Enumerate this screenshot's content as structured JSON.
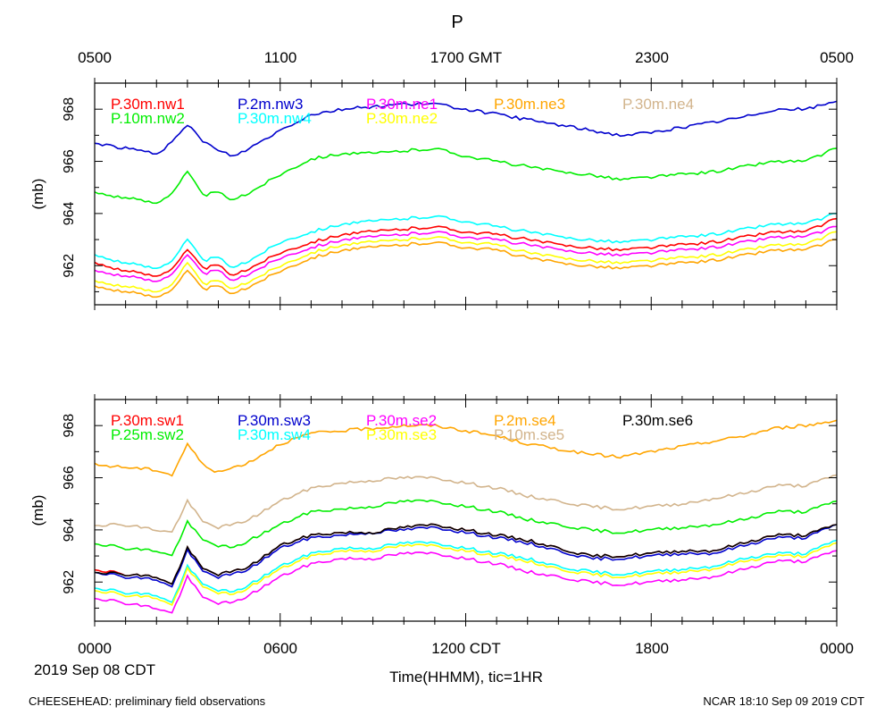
{
  "page": {
    "title": "P",
    "top_axis_ticks": [
      "0500",
      "1100",
      "1700 GMT",
      "2300",
      "0500"
    ],
    "bottom_axis_ticks": [
      "0000",
      "0600",
      "1200 CDT",
      "1800",
      "0000"
    ],
    "date_label": "2019 Sep 08 CDT",
    "xlabel": "Time(HHMM), tic=1HR",
    "footer_left": "CHEESEHEAD: preliminary field observations",
    "footer_right": "NCAR 18:10 Sep 09 2019 CDT"
  },
  "colors": {
    "red": "#ff0000",
    "blue": "#0000cd",
    "magenta": "#ff00ff",
    "orange": "#ffa500",
    "tan": "#d2b48c",
    "green": "#00ee00",
    "cyan": "#00ffff",
    "yellow": "#ffff00",
    "black": "#000000"
  },
  "chart_data": [
    {
      "type": "line",
      "ylabel": "(mb)",
      "ylim": [
        960.5,
        969.0
      ],
      "xlim_hours": [
        0,
        24
      ],
      "yticks": [
        "962",
        "964",
        "966",
        "968"
      ],
      "ytick_values": [
        962,
        964,
        966,
        968
      ],
      "series": [
        {
          "name": "P.30m.nw1",
          "color": "#ff0000",
          "x": [
            0,
            1,
            2,
            2.5,
            3,
            3.5,
            4,
            4.5,
            5,
            6,
            7,
            8,
            9,
            10,
            11,
            12,
            13,
            14,
            15,
            16,
            17,
            18,
            19,
            20,
            21,
            22,
            23,
            24
          ],
          "values": [
            962.1,
            961.8,
            961.6,
            961.9,
            962.6,
            961.9,
            962.0,
            961.6,
            961.9,
            962.5,
            962.9,
            963.2,
            963.3,
            963.4,
            963.5,
            963.3,
            963.2,
            963.0,
            962.8,
            962.7,
            962.6,
            962.7,
            962.8,
            962.9,
            963.1,
            963.3,
            963.3,
            963.8
          ]
        },
        {
          "name": "P.10m.nw2",
          "color": "#00ee00",
          "x": [
            0,
            1,
            2,
            2.5,
            3,
            3.5,
            4,
            4.5,
            5,
            6,
            7,
            8,
            9,
            10,
            11,
            12,
            13,
            14,
            15,
            16,
            17,
            18,
            19,
            20,
            21,
            22,
            23,
            24
          ],
          "values": [
            964.8,
            964.6,
            964.4,
            964.8,
            965.6,
            964.7,
            964.8,
            964.5,
            964.8,
            965.5,
            966.1,
            966.3,
            966.3,
            966.4,
            966.5,
            966.2,
            966.0,
            965.8,
            965.6,
            965.5,
            965.3,
            965.4,
            965.5,
            965.6,
            965.8,
            966.0,
            966.0,
            966.5
          ]
        },
        {
          "name": "P.2m.nw3",
          "color": "#0000cd",
          "x": [
            0,
            1,
            2,
            2.5,
            3,
            3.5,
            4,
            4.5,
            5,
            6,
            7,
            8,
            9,
            10,
            11,
            12,
            13,
            14,
            15,
            16,
            17,
            18,
            19,
            20,
            21,
            22,
            23,
            24
          ],
          "values": [
            966.7,
            966.5,
            966.3,
            966.7,
            967.4,
            966.8,
            966.4,
            966.2,
            966.5,
            967.2,
            967.8,
            968.0,
            968.1,
            968.2,
            968.2,
            968.0,
            967.8,
            967.6,
            967.4,
            967.2,
            967.0,
            967.1,
            967.3,
            967.5,
            967.7,
            968.0,
            968.0,
            968.3
          ]
        },
        {
          "name": "P.30m.nw4",
          "color": "#00ffff",
          "x": [
            0,
            1,
            2,
            2.5,
            3,
            3.5,
            4,
            4.5,
            5,
            6,
            7,
            8,
            9,
            10,
            11,
            12,
            13,
            14,
            15,
            16,
            17,
            18,
            19,
            20,
            21,
            22,
            23,
            24
          ],
          "values": [
            962.4,
            962.1,
            961.9,
            962.2,
            963.0,
            962.2,
            962.3,
            961.9,
            962.2,
            962.9,
            963.3,
            963.6,
            963.7,
            963.8,
            963.9,
            963.7,
            963.5,
            963.3,
            963.1,
            963.0,
            962.9,
            963.0,
            963.1,
            963.2,
            963.4,
            963.6,
            963.6,
            964.0
          ]
        },
        {
          "name": "P.30m.ne1",
          "color": "#ff00ff",
          "x": [
            0,
            1,
            2,
            2.5,
            3,
            3.5,
            4,
            4.5,
            5,
            6,
            7,
            8,
            9,
            10,
            11,
            12,
            13,
            14,
            15,
            16,
            17,
            18,
            19,
            20,
            21,
            22,
            23,
            24
          ],
          "values": [
            961.8,
            961.6,
            961.4,
            961.7,
            962.4,
            961.7,
            961.8,
            961.4,
            961.7,
            962.3,
            962.7,
            963.0,
            963.1,
            963.2,
            963.3,
            963.1,
            963.0,
            962.8,
            962.6,
            962.5,
            962.4,
            962.5,
            962.6,
            962.7,
            962.9,
            963.1,
            963.1,
            963.5
          ]
        },
        {
          "name": "P.30m.ne2",
          "color": "#ffff00",
          "x": [
            0,
            1,
            2,
            2.5,
            3,
            3.5,
            4,
            4.5,
            5,
            6,
            7,
            8,
            9,
            10,
            11,
            12,
            13,
            14,
            15,
            16,
            17,
            18,
            19,
            20,
            21,
            22,
            23,
            24
          ],
          "values": [
            961.4,
            961.2,
            961.0,
            961.3,
            962.1,
            961.3,
            961.4,
            961.1,
            961.4,
            962.0,
            962.5,
            962.8,
            962.9,
            963.0,
            963.1,
            962.9,
            962.8,
            962.5,
            962.3,
            962.2,
            962.1,
            962.2,
            962.3,
            962.4,
            962.6,
            962.8,
            962.8,
            963.3
          ]
        },
        {
          "name": "P.30m.ne3",
          "color": "#ffa500",
          "x": [
            0,
            1,
            2,
            2.5,
            3,
            3.5,
            4,
            4.5,
            5,
            6,
            7,
            8,
            9,
            10,
            11,
            12,
            13,
            14,
            15,
            16,
            17,
            18,
            19,
            20,
            21,
            22,
            23,
            24
          ],
          "values": [
            961.2,
            961.0,
            960.8,
            961.1,
            961.8,
            961.1,
            961.2,
            960.9,
            961.2,
            961.8,
            962.3,
            962.6,
            962.7,
            962.8,
            962.9,
            962.7,
            962.6,
            962.3,
            962.1,
            962.0,
            961.9,
            962.0,
            962.1,
            962.2,
            962.4,
            962.6,
            962.6,
            963.0
          ]
        },
        {
          "name": "P.30m.ne4",
          "color": "#d2b48c",
          "x": [],
          "values": []
        }
      ]
    },
    {
      "type": "line",
      "ylabel": "(mb)",
      "ylim": [
        960.5,
        969.0
      ],
      "xlim_hours": [
        0,
        24
      ],
      "yticks": [
        "962",
        "964",
        "966",
        "968"
      ],
      "ytick_values": [
        962,
        964,
        966,
        968
      ],
      "series": [
        {
          "name": "P.30m.sw1",
          "color": "#ff0000",
          "x": [
            0,
            1,
            2,
            2.5,
            3,
            3.5,
            4,
            4.5,
            5,
            6,
            7,
            8,
            9,
            10,
            11,
            12,
            13,
            14,
            15,
            16,
            17,
            18,
            19,
            20,
            21,
            22,
            23,
            24
          ],
          "values": [
            962.5,
            962.3,
            962.2,
            961.9,
            963.3,
            962.5,
            962.3,
            962.4,
            962.6,
            963.4,
            963.8,
            963.9,
            963.9,
            964.1,
            964.2,
            964.0,
            963.8,
            963.6,
            963.3,
            963.0,
            963.0,
            963.1,
            963.2,
            963.2,
            963.5,
            963.8,
            963.8,
            964.2
          ]
        },
        {
          "name": "P.25m.sw2",
          "color": "#00ee00",
          "x": [
            0,
            1,
            2,
            2.5,
            3,
            3.5,
            4,
            4.5,
            5,
            6,
            7,
            8,
            9,
            10,
            11,
            12,
            13,
            14,
            15,
            16,
            17,
            18,
            19,
            20,
            21,
            22,
            23,
            24
          ],
          "values": [
            963.5,
            963.3,
            963.2,
            963.0,
            964.3,
            963.6,
            963.4,
            963.3,
            963.6,
            964.2,
            964.7,
            964.8,
            964.9,
            965.1,
            965.1,
            964.9,
            964.7,
            964.4,
            964.2,
            964.0,
            963.9,
            964.0,
            964.1,
            964.2,
            964.4,
            964.7,
            964.7,
            965.1
          ]
        },
        {
          "name": "P.30m.sw3",
          "color": "#0000cd",
          "x": [
            0,
            1,
            2,
            2.5,
            3,
            3.5,
            4,
            4.5,
            5,
            6,
            7,
            8,
            9,
            10,
            11,
            12,
            13,
            14,
            15,
            16,
            17,
            18,
            19,
            20,
            21,
            22,
            23,
            24
          ],
          "values": [
            962.4,
            962.2,
            962.1,
            961.8,
            963.2,
            962.4,
            962.2,
            962.3,
            962.5,
            963.3,
            963.7,
            963.8,
            963.9,
            964.0,
            964.1,
            963.9,
            963.7,
            963.5,
            963.2,
            962.9,
            962.9,
            963.0,
            963.1,
            963.1,
            963.4,
            963.7,
            963.7,
            964.2
          ]
        },
        {
          "name": "P.30m.sw4",
          "color": "#00ffff",
          "x": [
            0,
            1,
            2,
            2.5,
            3,
            3.5,
            4,
            4.5,
            5,
            6,
            7,
            8,
            9,
            10,
            11,
            12,
            13,
            14,
            15,
            16,
            17,
            18,
            19,
            20,
            21,
            22,
            23,
            24
          ],
          "values": [
            961.8,
            961.6,
            961.5,
            961.2,
            962.6,
            961.9,
            961.7,
            961.6,
            961.9,
            962.6,
            963.1,
            963.3,
            963.3,
            963.5,
            963.5,
            963.3,
            963.1,
            962.9,
            962.6,
            962.4,
            962.3,
            962.4,
            962.5,
            962.6,
            962.9,
            963.1,
            963.1,
            963.6
          ]
        },
        {
          "name": "P.30m.se2",
          "color": "#ff00ff",
          "x": [
            0,
            1,
            2,
            2.5,
            3,
            3.5,
            4,
            4.5,
            5,
            6,
            7,
            8,
            9,
            10,
            11,
            12,
            13,
            14,
            15,
            16,
            17,
            18,
            19,
            20,
            21,
            22,
            23,
            24
          ],
          "values": [
            961.4,
            961.2,
            961.0,
            960.8,
            962.2,
            961.4,
            961.2,
            961.2,
            961.5,
            962.2,
            962.7,
            962.9,
            962.9,
            963.1,
            963.1,
            962.9,
            962.7,
            962.4,
            962.2,
            962.0,
            961.9,
            962.0,
            962.1,
            962.2,
            962.5,
            962.8,
            962.8,
            963.2
          ]
        },
        {
          "name": "P.30m.se3",
          "color": "#ffff00",
          "x": [
            0,
            1,
            2,
            2.5,
            3,
            3.5,
            4,
            4.5,
            5,
            6,
            7,
            8,
            9,
            10,
            11,
            12,
            13,
            14,
            15,
            16,
            17,
            18,
            19,
            20,
            21,
            22,
            23,
            24
          ],
          "values": [
            961.7,
            961.5,
            961.4,
            961.1,
            962.5,
            961.8,
            961.6,
            961.5,
            961.8,
            962.5,
            963.0,
            963.2,
            963.2,
            963.4,
            963.4,
            963.2,
            963.0,
            962.8,
            962.5,
            962.3,
            962.2,
            962.3,
            962.4,
            962.5,
            962.8,
            963.0,
            963.0,
            963.5
          ]
        },
        {
          "name": "P.2m.se4",
          "color": "#ffa500",
          "x": [
            0,
            1,
            2,
            2.5,
            3,
            3.5,
            4,
            4.5,
            5,
            6,
            7,
            8,
            9,
            10,
            11,
            12,
            13,
            14,
            15,
            16,
            17,
            18,
            19,
            20,
            21,
            22,
            23,
            24
          ],
          "values": [
            966.5,
            966.4,
            966.3,
            966.1,
            967.3,
            966.5,
            966.2,
            966.4,
            966.6,
            967.3,
            967.7,
            967.8,
            967.9,
            968.0,
            968.0,
            967.8,
            967.6,
            967.3,
            967.1,
            966.9,
            966.8,
            967.0,
            967.2,
            967.4,
            967.6,
            967.9,
            968.0,
            968.2
          ]
        },
        {
          "name": "P.10m.se5",
          "color": "#d2b48c",
          "x": [
            0,
            1,
            2,
            2.5,
            3,
            3.5,
            4,
            4.5,
            5,
            6,
            7,
            8,
            9,
            10,
            11,
            12,
            13,
            14,
            15,
            16,
            17,
            18,
            19,
            20,
            21,
            22,
            23,
            24
          ],
          "values": [
            964.2,
            964.2,
            964.0,
            963.9,
            965.1,
            964.3,
            964.1,
            964.2,
            964.4,
            965.1,
            965.6,
            965.8,
            965.9,
            966.0,
            966.0,
            965.8,
            965.6,
            965.3,
            965.1,
            964.9,
            964.8,
            964.9,
            965.0,
            965.2,
            965.4,
            965.7,
            965.7,
            966.1
          ]
        },
        {
          "name": "P.30m.se6",
          "color": "#000000",
          "x": [
            0,
            1,
            2,
            2.5,
            3,
            3.5,
            4,
            4.5,
            5,
            6,
            7,
            8,
            9,
            10,
            11,
            12,
            13,
            14,
            15,
            16,
            17,
            18,
            19,
            20,
            21,
            22,
            23,
            24
          ],
          "values": [
            962.4,
            962.3,
            962.2,
            961.9,
            963.3,
            962.5,
            962.3,
            962.4,
            962.6,
            963.4,
            963.8,
            963.9,
            963.9,
            964.1,
            964.2,
            964.0,
            963.8,
            963.6,
            963.3,
            963.0,
            963.0,
            963.1,
            963.2,
            963.2,
            963.5,
            963.8,
            963.8,
            964.2
          ]
        }
      ]
    }
  ]
}
